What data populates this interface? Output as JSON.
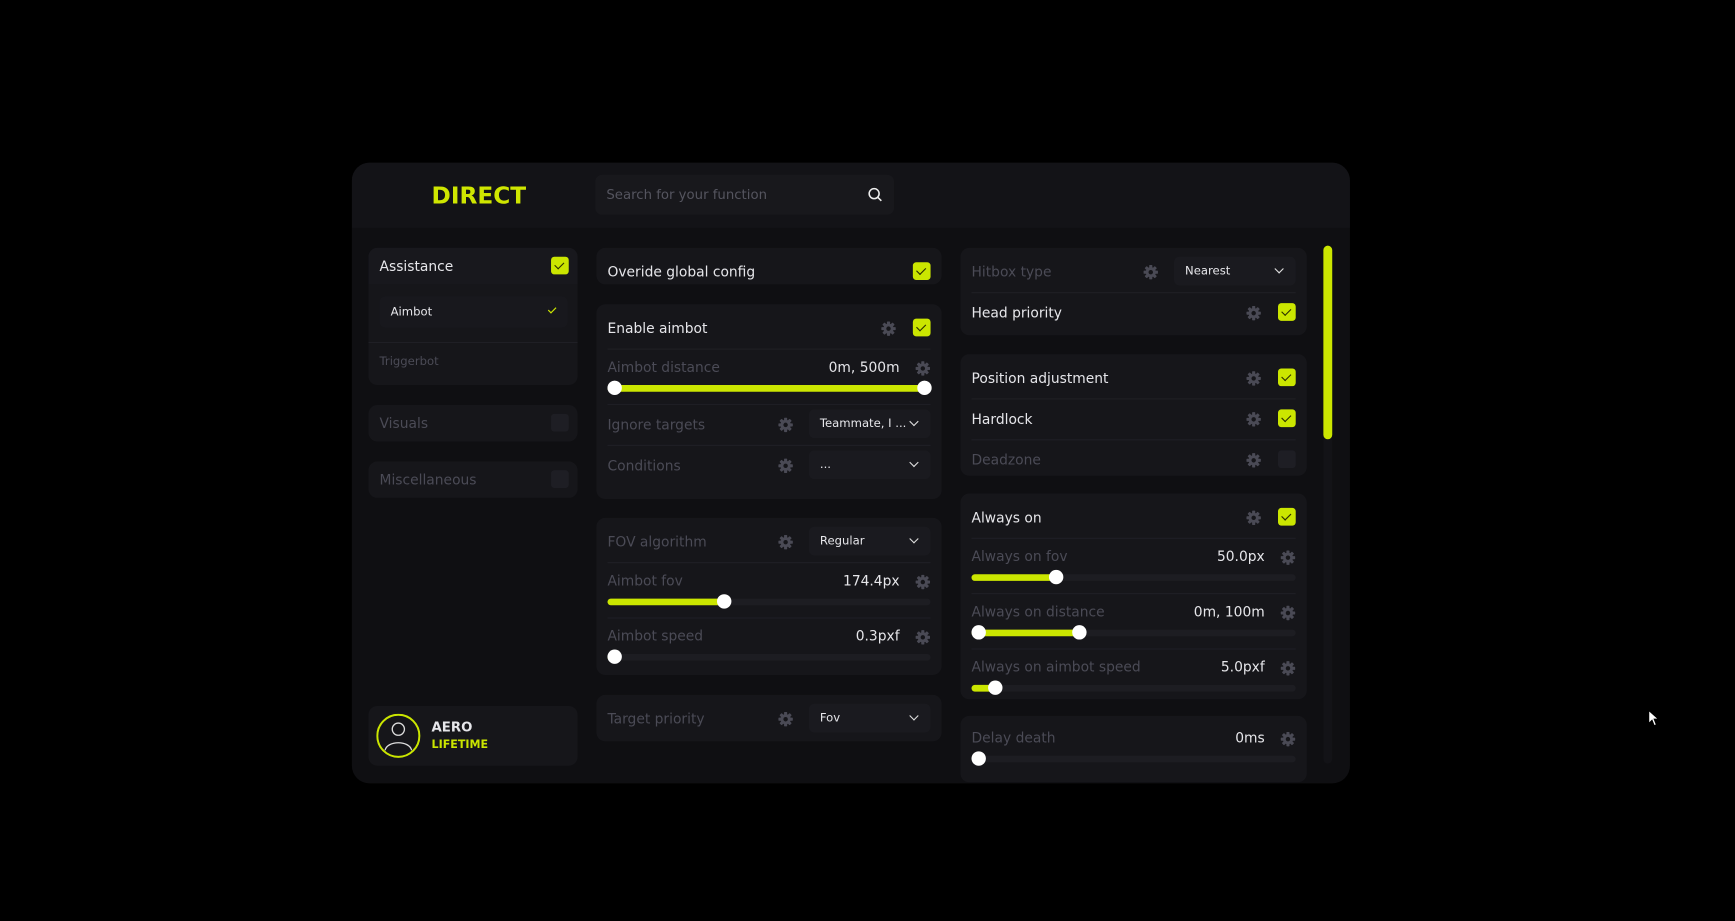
{
  "app": {
    "logo": "DIRECT",
    "search_placeholder": "Search for your function",
    "accent": "#cbe600"
  },
  "sidebar": {
    "categories": [
      {
        "label": "Assistance",
        "checked": true,
        "active": true,
        "items": [
          {
            "label": "Aimbot",
            "selected": true
          },
          {
            "label": "Triggerbot",
            "selected": false
          }
        ]
      },
      {
        "label": "Visuals",
        "checked": false,
        "active": false
      },
      {
        "label": "Miscellaneous",
        "checked": false,
        "active": false
      }
    ],
    "profile": {
      "name": "AERO",
      "plan": "LIFETIME"
    }
  },
  "middle": [
    {
      "rows": [
        {
          "type": "toggle",
          "label": "Overide global config",
          "active": true,
          "checked": true,
          "gear": false
        }
      ]
    },
    {
      "rows": [
        {
          "type": "toggle",
          "label": "Enable aimbot",
          "active": true,
          "checked": true,
          "gear": true
        },
        {
          "type": "slider",
          "label": "Aimbot distance",
          "value": "0m, 500m",
          "range": [
            0,
            100
          ]
        },
        {
          "type": "select",
          "label": "Ignore targets",
          "value": "Teammate, I ..."
        },
        {
          "type": "select",
          "label": "Conditions",
          "value": "..."
        }
      ]
    },
    {
      "rows": [
        {
          "type": "select",
          "label": "FOV algorithm",
          "value": "Regular"
        },
        {
          "type": "slider",
          "label": "Aimbot fov",
          "value": "174.4px",
          "range": [
            0,
            36
          ]
        },
        {
          "type": "slider",
          "label": "Aimbot speed",
          "value": "0.3pxf",
          "range": [
            0,
            2
          ]
        }
      ]
    },
    {
      "rows": [
        {
          "type": "select",
          "label": "Target priority",
          "value": "Fov"
        }
      ]
    }
  ],
  "right": [
    {
      "rows": [
        {
          "type": "select",
          "label": "Hitbox type",
          "value": "Nearest"
        },
        {
          "type": "toggle",
          "label": "Head priority",
          "active": true,
          "checked": true,
          "gear": true
        }
      ]
    },
    {
      "rows": [
        {
          "type": "toggle",
          "label": "Position adjustment",
          "active": true,
          "checked": true,
          "gear": true
        },
        {
          "type": "toggle",
          "label": "Hardlock",
          "active": true,
          "checked": true,
          "gear": true
        },
        {
          "type": "toggle",
          "label": "Deadzone",
          "active": false,
          "checked": false,
          "gear": true
        }
      ]
    },
    {
      "rows": [
        {
          "type": "toggle",
          "label": "Always on",
          "active": true,
          "checked": true,
          "gear": true
        },
        {
          "type": "slider",
          "label": "Always on fov",
          "value": "50.0px",
          "range": [
            0,
            26
          ]
        },
        {
          "type": "slider",
          "label": "Always on distance",
          "value": "0m, 100m",
          "range": [
            0,
            33
          ]
        },
        {
          "type": "slider",
          "label": "Always on aimbot speed",
          "value": "5.0pxf",
          "range": [
            0,
            7
          ]
        }
      ]
    },
    {
      "rows": [
        {
          "type": "slider",
          "label": "Delay death",
          "value": "0ms",
          "range": [
            0,
            0
          ]
        }
      ]
    }
  ],
  "scrollbar": {
    "position_percent": 0,
    "visible_percent": 37
  }
}
